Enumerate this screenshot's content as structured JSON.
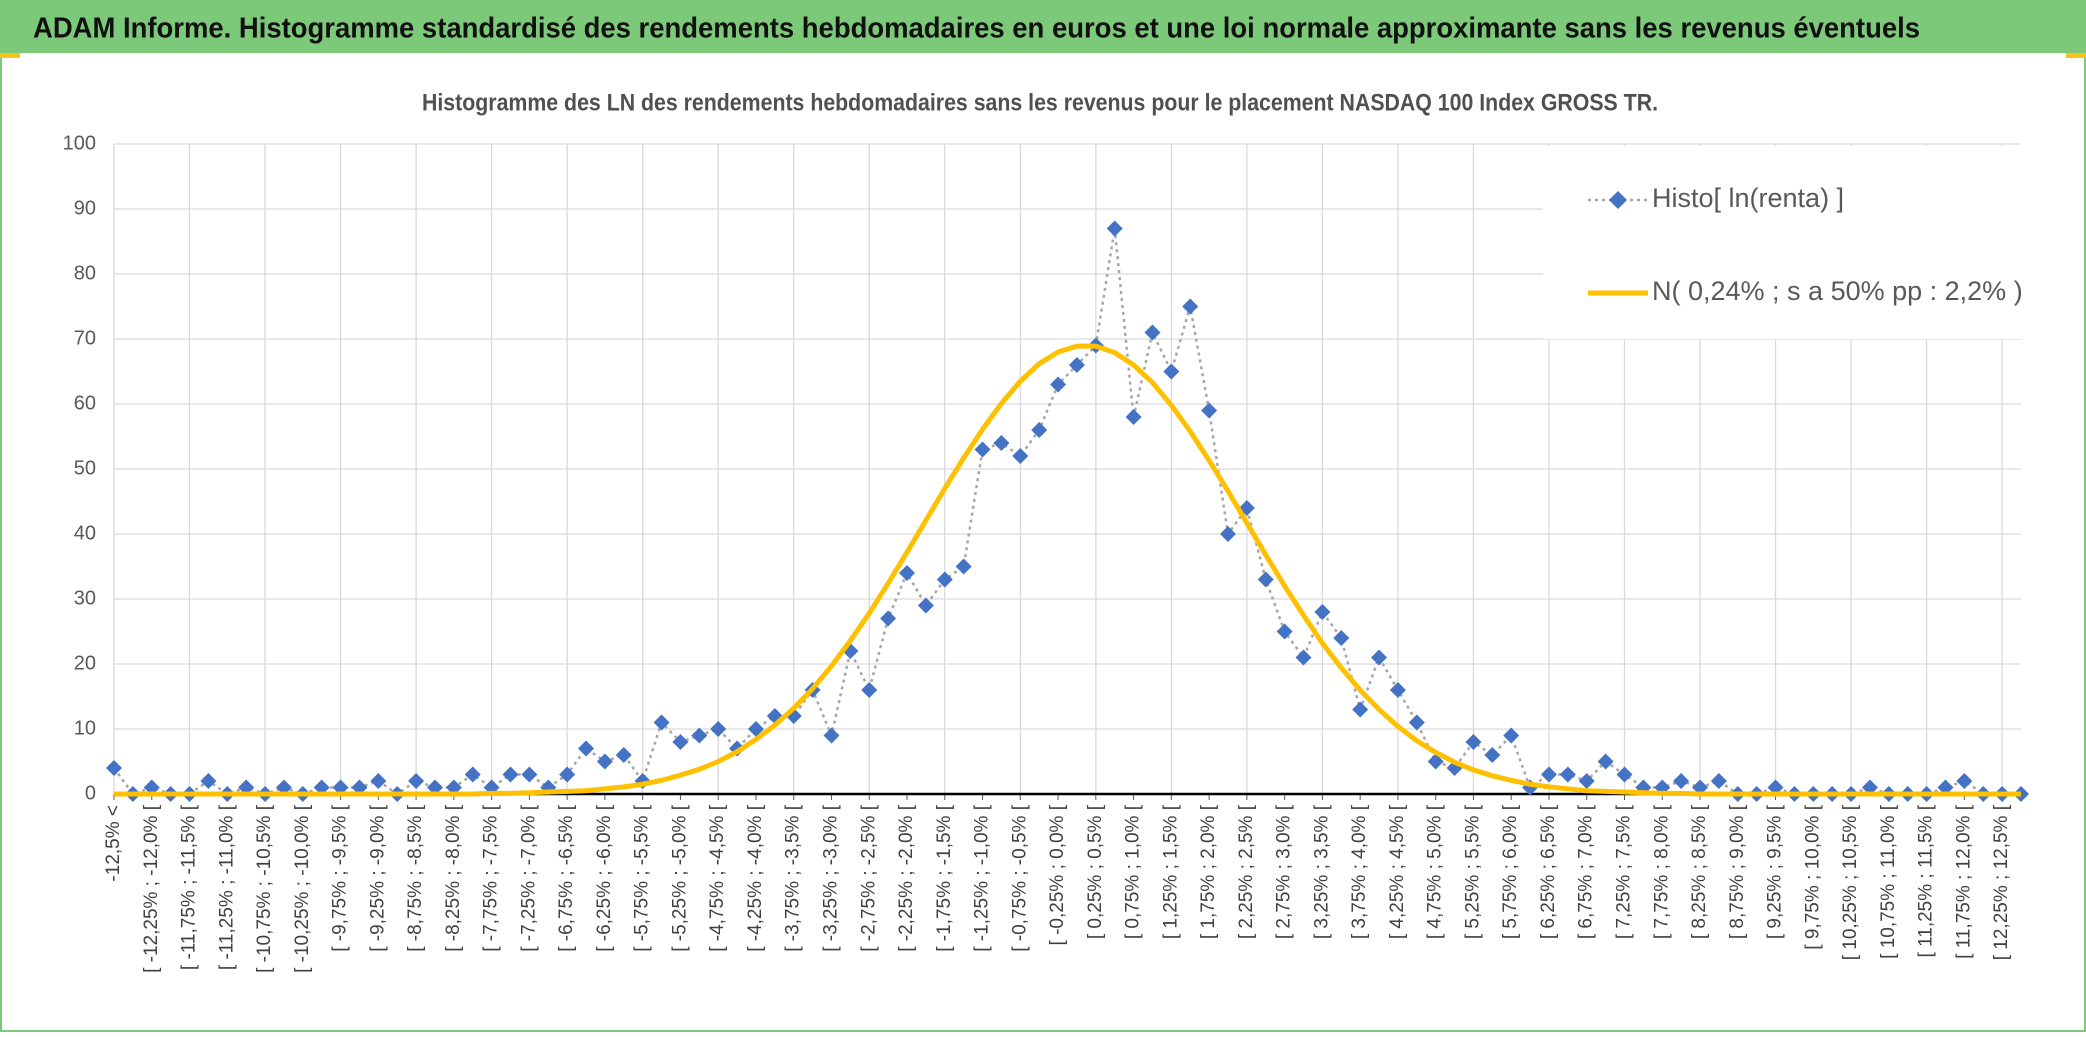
{
  "header": {
    "title": "ADAM Informe. Histogramme standardisé des rendements hebdomadaires en euros et une loi normale approximante sans les revenus éventuels"
  },
  "chart_data": {
    "type": "line",
    "title": "Histogramme des LN des rendements hebdomadaires sans les revenus pour le placement NASDAQ 100 Index GROSS TR.",
    "categories": [
      "-12,5% <",
      null,
      "[ -12,25% ; -12,0% [",
      null,
      "[ -11,75% ; -11,5% [",
      null,
      "[ -11,25% ; -11,0% [",
      null,
      "[ -10,75% ; -10,5% [",
      null,
      "[ -10,25% ; -10,0% [",
      null,
      "[ -9,75% ; -9,5% [",
      null,
      "[ -9,25% ; -9,0% [",
      null,
      "[ -8,75% ; -8,5% [",
      null,
      "[ -8,25% ; -8,0% [",
      null,
      "[ -7,75% ; -7,5% [",
      null,
      "[ -7,25% ; -7,0% [",
      null,
      "[ -6,75% ; -6,5% [",
      null,
      "[ -6,25% ; -6,0% [",
      null,
      "[ -5,75% ; -5,5% [",
      null,
      "[ -5,25% ; -5,0% [",
      null,
      "[ -4,75% ; -4,5% [",
      null,
      "[ -4,25% ; -4,0% [",
      null,
      "[ -3,75% ; -3,5% [",
      null,
      "[ -3,25% ; -3,0% [",
      null,
      "[ -2,75% ; -2,5% [",
      null,
      "[ -2,25% ; -2,0% [",
      null,
      "[ -1,75% ; -1,5% [",
      null,
      "[ -1,25% ; -1,0% [",
      null,
      "[ -0,75% ; -0,5% [",
      null,
      "[ -0,25% ; 0,0% [",
      null,
      "[ 0,25% ; 0,5% [",
      null,
      "[ 0,75% ; 1,0% [",
      null,
      "[ 1,25% ; 1,5% [",
      null,
      "[ 1,75% ; 2,0% [",
      null,
      "[ 2,25% ; 2,5% [",
      null,
      "[ 2,75% ; 3,0% [",
      null,
      "[ 3,25% ; 3,5% [",
      null,
      "[ 3,75% ; 4,0% [",
      null,
      "[ 4,25% ; 4,5% [",
      null,
      "[ 4,75% ; 5,0% [",
      null,
      "[ 5,25% ; 5,5% [",
      null,
      "[ 5,75% ; 6,0% [",
      null,
      "[ 6,25% ; 6,5% [",
      null,
      "[ 6,75% ; 7,0% [",
      null,
      "[ 7,25% ; 7,5% [",
      null,
      "[ 7,75% ; 8,0% [",
      null,
      "[ 8,25% ; 8,5% [",
      null,
      "[ 8,75% ; 9,0% [",
      null,
      "[ 9,25% ; 9,5% [",
      null,
      "[ 9,75% ; 10,0% [",
      null,
      "[ 10,25% ; 10,5% [",
      null,
      "[ 10,75% ; 11,0% [",
      null,
      "[ 11,25% ; 11,5% [",
      null,
      "[ 11,75% ; 12,0% [",
      null,
      "[ 12,25% ; 12,5% [",
      null
    ],
    "series": [
      {
        "name": "Histo[ ln(renta) ]",
        "color": "#4472c4",
        "line_color": "#a6a6a6",
        "marker": "diamond",
        "values": [
          4,
          0,
          1,
          0,
          0,
          2,
          0,
          1,
          0,
          1,
          0,
          1,
          1,
          1,
          2,
          0,
          2,
          1,
          1,
          3,
          1,
          3,
          3,
          1,
          3,
          7,
          5,
          6,
          2,
          11,
          8,
          9,
          10,
          7,
          10,
          12,
          12,
          16,
          9,
          22,
          16,
          27,
          34,
          29,
          33,
          35,
          53,
          54,
          52,
          56,
          63,
          66,
          69,
          87,
          58,
          71,
          65,
          75,
          59,
          40,
          44,
          33,
          25,
          21,
          28,
          24,
          13,
          21,
          16,
          11,
          5,
          4,
          8,
          6,
          9,
          1,
          3,
          3,
          2,
          5,
          3,
          1,
          1,
          2,
          1,
          2,
          0,
          0,
          1,
          0,
          0,
          0,
          0,
          1,
          0,
          0,
          0,
          1,
          2,
          0,
          0,
          0
        ]
      },
      {
        "name": "N( 0,24% ; s a 50% pp : 2,2% )",
        "color": "#ffc000",
        "values": [
          0,
          0,
          0,
          0,
          0,
          0,
          0,
          0,
          0,
          0,
          0,
          0,
          0,
          0,
          0,
          0,
          0,
          0,
          0,
          0,
          0.1,
          0.1,
          0.2,
          0.3,
          0.4,
          0.5,
          0.8,
          1.1,
          1.5,
          2.1,
          2.9,
          3.8,
          5.0,
          6.5,
          8.4,
          10.6,
          13.2,
          16.2,
          19.7,
          23.6,
          27.8,
          32.4,
          37.2,
          42.1,
          47.0,
          51.7,
          56.1,
          60.1,
          63.5,
          66.2,
          68.0,
          68.9,
          68.9,
          67.9,
          66.0,
          63.3,
          59.8,
          55.8,
          51.3,
          46.6,
          41.7,
          36.8,
          32.0,
          27.5,
          23.2,
          19.4,
          16.0,
          13.0,
          10.4,
          8.2,
          6.4,
          4.9,
          3.7,
          2.8,
          2.1,
          1.5,
          1.1,
          0.8,
          0.5,
          0.4,
          0.3,
          0.2,
          0.1,
          0.1,
          0,
          0,
          0,
          0,
          0,
          0,
          0,
          0,
          0,
          0,
          0,
          0,
          0,
          0,
          0,
          0,
          0,
          0
        ]
      }
    ],
    "ylim": [
      0,
      100
    ],
    "yticks": [
      0,
      10,
      20,
      30,
      40,
      50,
      60,
      70,
      80,
      90,
      100
    ],
    "grid": true,
    "legend": "upper right"
  }
}
